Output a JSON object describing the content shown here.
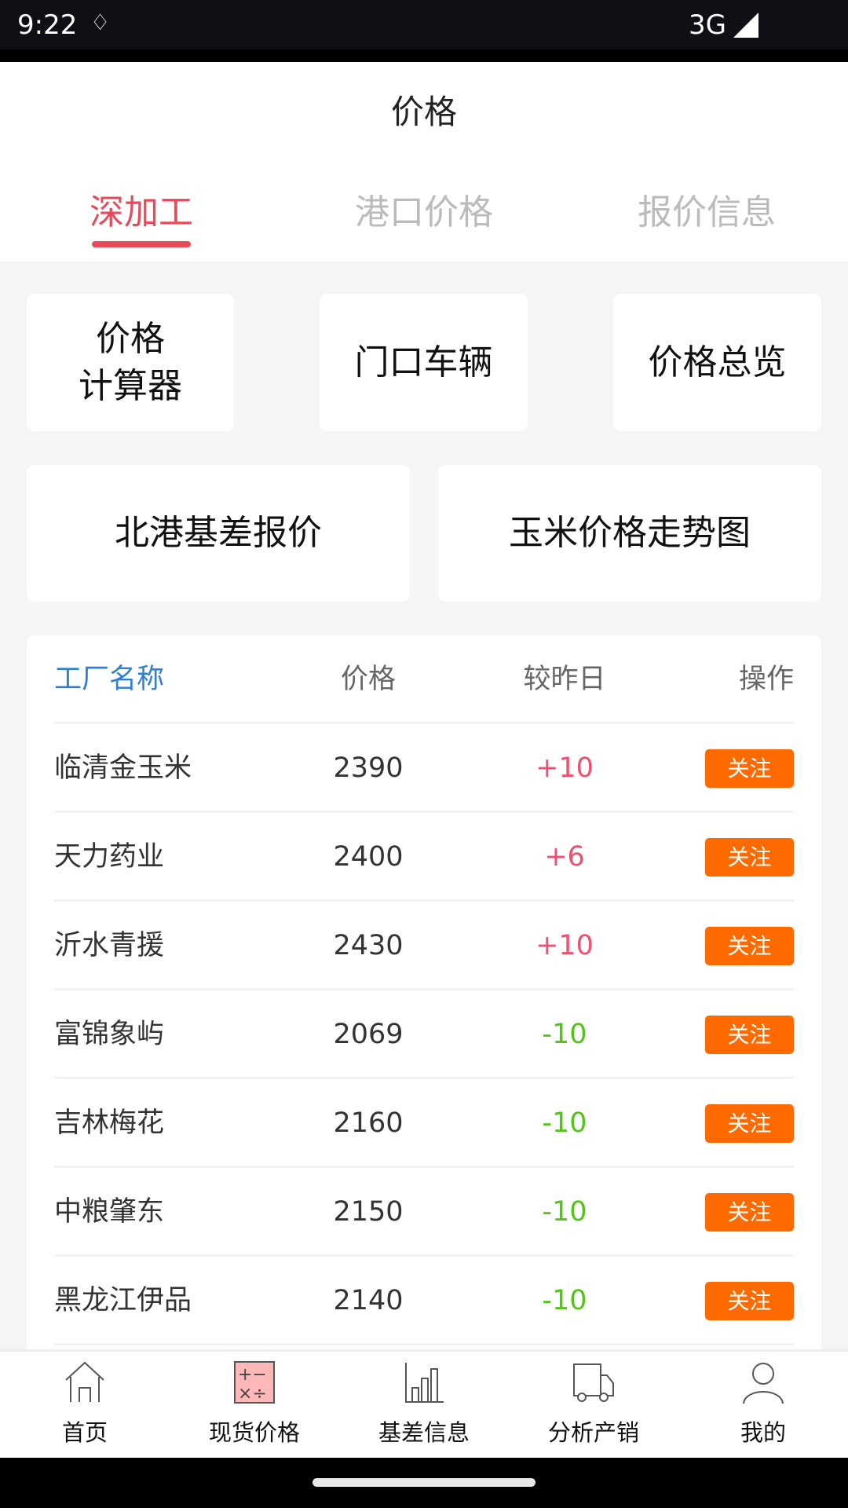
{
  "status_bar": {
    "time": "9:22",
    "network": "3G"
  },
  "header": {
    "title": "价格"
  },
  "tabs": [
    {
      "label": "深加工",
      "active": true
    },
    {
      "label": "港口价格"
    },
    {
      "label": "报价信息"
    }
  ],
  "shortcuts": {
    "calculator_line1": "价格",
    "calculator_line2": "计算器",
    "gate_vehicles": "门口车辆",
    "price_overview": "价格总览",
    "beigang_basis": "北港基差报价",
    "corn_trend": "玉米价格走势图"
  },
  "table": {
    "headers": {
      "name": "工厂名称",
      "price": "价格",
      "change": "较昨日",
      "action": "操作"
    },
    "rows": [
      {
        "name": "临清金玉米",
        "price": "2390",
        "change": "+10",
        "action": "关注"
      },
      {
        "name": "天力药业",
        "price": "2400",
        "change": "+6",
        "action": "关注"
      },
      {
        "name": "沂水青援",
        "price": "2430",
        "change": "+10",
        "action": "关注"
      },
      {
        "name": "富锦象屿",
        "price": "2069",
        "change": "-10",
        "action": "关注"
      },
      {
        "name": "吉林梅花",
        "price": "2160",
        "change": "-10",
        "action": "关注"
      },
      {
        "name": "中粮肇东",
        "price": "2150",
        "change": "-10",
        "action": "关注"
      },
      {
        "name": "黑龙江伊品",
        "price": "2140",
        "change": "-10",
        "action": "关注"
      }
    ]
  },
  "bottom_nav": [
    {
      "label": "首页",
      "icon": "home-icon"
    },
    {
      "label": "现货价格",
      "icon": "calculator-icon",
      "active": true
    },
    {
      "label": "基差信息",
      "icon": "bar-chart-icon"
    },
    {
      "label": "分析产销",
      "icon": "truck-icon"
    },
    {
      "label": "我的",
      "icon": "user-icon"
    }
  ],
  "colors": {
    "accent": "#e84a5a",
    "rise": "#f0506e",
    "fall": "#52c41a",
    "follow_button": "#ff6a00",
    "header_blue": "#2d7fd6"
  }
}
